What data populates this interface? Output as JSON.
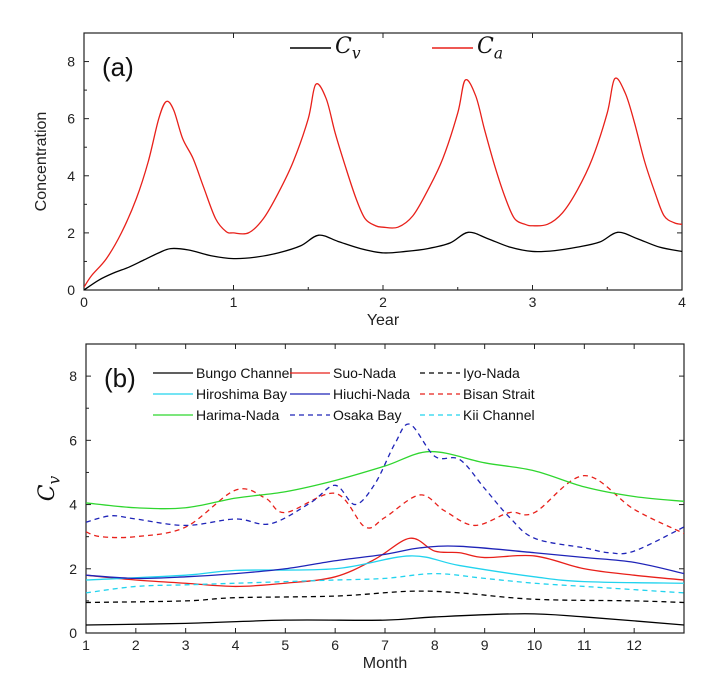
{
  "chart_data": [
    {
      "panel": "(a)",
      "type": "line",
      "xlabel": "Year",
      "ylabel": "Concentration",
      "xlim": [
        0,
        4
      ],
      "ylim": [
        0,
        9
      ],
      "xticks": [
        0,
        1,
        2,
        3,
        4
      ],
      "yticks": [
        0,
        2,
        4,
        6,
        8
      ],
      "legend_position": "top-center",
      "series": [
        {
          "name": "C",
          "name_sub": "v",
          "color": "#000000",
          "points": [
            [
              0,
              0
            ],
            [
              0.1,
              0.35
            ],
            [
              0.2,
              0.6
            ],
            [
              0.3,
              0.8
            ],
            [
              0.4,
              1.05
            ],
            [
              0.5,
              1.3
            ],
            [
              0.58,
              1.45
            ],
            [
              0.7,
              1.4
            ],
            [
              0.85,
              1.2
            ],
            [
              1.0,
              1.1
            ],
            [
              1.15,
              1.15
            ],
            [
              1.3,
              1.3
            ],
            [
              1.45,
              1.55
            ],
            [
              1.57,
              1.92
            ],
            [
              1.7,
              1.7
            ],
            [
              1.85,
              1.45
            ],
            [
              2.0,
              1.3
            ],
            [
              2.15,
              1.35
            ],
            [
              2.3,
              1.45
            ],
            [
              2.45,
              1.65
            ],
            [
              2.57,
              2.02
            ],
            [
              2.7,
              1.8
            ],
            [
              2.85,
              1.5
            ],
            [
              3.0,
              1.35
            ],
            [
              3.15,
              1.38
            ],
            [
              3.3,
              1.5
            ],
            [
              3.45,
              1.68
            ],
            [
              3.57,
              2.02
            ],
            [
              3.7,
              1.8
            ],
            [
              3.85,
              1.5
            ],
            [
              4.0,
              1.35
            ]
          ]
        },
        {
          "name": "C",
          "name_sub": "a",
          "color": "#e8201a",
          "points": [
            [
              0,
              0.1
            ],
            [
              0.05,
              0.5
            ],
            [
              0.15,
              1.1
            ],
            [
              0.25,
              2.0
            ],
            [
              0.35,
              3.2
            ],
            [
              0.43,
              4.5
            ],
            [
              0.5,
              6.0
            ],
            [
              0.55,
              6.6
            ],
            [
              0.6,
              6.3
            ],
            [
              0.66,
              5.3
            ],
            [
              0.73,
              4.6
            ],
            [
              0.8,
              3.6
            ],
            [
              0.88,
              2.5
            ],
            [
              0.95,
              2.05
            ],
            [
              1.0,
              2.0
            ],
            [
              1.1,
              2.0
            ],
            [
              1.2,
              2.5
            ],
            [
              1.3,
              3.4
            ],
            [
              1.4,
              4.5
            ],
            [
              1.5,
              6.0
            ],
            [
              1.55,
              7.2
            ],
            [
              1.62,
              6.7
            ],
            [
              1.68,
              5.5
            ],
            [
              1.75,
              4.3
            ],
            [
              1.82,
              3.2
            ],
            [
              1.88,
              2.5
            ],
            [
              1.95,
              2.25
            ],
            [
              2.0,
              2.2
            ],
            [
              2.1,
              2.2
            ],
            [
              2.2,
              2.6
            ],
            [
              2.3,
              3.5
            ],
            [
              2.4,
              4.6
            ],
            [
              2.5,
              6.2
            ],
            [
              2.55,
              7.35
            ],
            [
              2.62,
              6.8
            ],
            [
              2.68,
              5.6
            ],
            [
              2.75,
              4.3
            ],
            [
              2.82,
              3.2
            ],
            [
              2.88,
              2.5
            ],
            [
              2.95,
              2.3
            ],
            [
              3.0,
              2.25
            ],
            [
              3.1,
              2.3
            ],
            [
              3.2,
              2.7
            ],
            [
              3.3,
              3.5
            ],
            [
              3.4,
              4.6
            ],
            [
              3.5,
              6.2
            ],
            [
              3.55,
              7.4
            ],
            [
              3.62,
              6.9
            ],
            [
              3.68,
              5.9
            ],
            [
              3.75,
              4.5
            ],
            [
              3.82,
              3.4
            ],
            [
              3.88,
              2.6
            ],
            [
              3.95,
              2.35
            ],
            [
              4.0,
              2.3
            ]
          ]
        }
      ]
    },
    {
      "panel": "(b)",
      "type": "line",
      "xlabel": "Month",
      "ylabel": "C",
      "ylabel_sub": "v",
      "xlim": [
        1,
        13
      ],
      "ylim": [
        0,
        9
      ],
      "xticks": [
        1,
        2,
        3,
        4,
        5,
        6,
        7,
        8,
        9,
        10,
        11,
        12
      ],
      "yticks": [
        0,
        2,
        4,
        6,
        8
      ],
      "legend_position": "top",
      "series": [
        {
          "name": "Bungo Channel",
          "color": "#000000",
          "dash": false,
          "points": [
            [
              1,
              0.25
            ],
            [
              3,
              0.3
            ],
            [
              5,
              0.4
            ],
            [
              7,
              0.4
            ],
            [
              8,
              0.5
            ],
            [
              9.8,
              0.6
            ],
            [
              11,
              0.5
            ],
            [
              13,
              0.25
            ]
          ]
        },
        {
          "name": "Suo-Nada",
          "color": "#e8201a",
          "dash": false,
          "points": [
            [
              1,
              1.8
            ],
            [
              2,
              1.65
            ],
            [
              3,
              1.55
            ],
            [
              4,
              1.45
            ],
            [
              5,
              1.55
            ],
            [
              6,
              1.75
            ],
            [
              6.8,
              2.3
            ],
            [
              7.5,
              2.95
            ],
            [
              8,
              2.55
            ],
            [
              8.5,
              2.5
            ],
            [
              9,
              2.35
            ],
            [
              10,
              2.4
            ],
            [
              11,
              2.0
            ],
            [
              12,
              1.8
            ],
            [
              13,
              1.65
            ]
          ]
        },
        {
          "name": "Iyo-Nada",
          "color": "#000000",
          "dash": true,
          "points": [
            [
              1,
              0.95
            ],
            [
              3,
              1.0
            ],
            [
              4,
              1.1
            ],
            [
              6,
              1.15
            ],
            [
              7.5,
              1.3
            ],
            [
              8.5,
              1.25
            ],
            [
              10,
              1.05
            ],
            [
              12,
              1.0
            ],
            [
              13,
              0.95
            ]
          ]
        },
        {
          "name": "Hiroshima Bay",
          "color": "#22d3ee",
          "dash": false,
          "points": [
            [
              1,
              1.65
            ],
            [
              3,
              1.8
            ],
            [
              4,
              1.95
            ],
            [
              6,
              2.0
            ],
            [
              7.5,
              2.4
            ],
            [
              8.5,
              2.1
            ],
            [
              10,
              1.75
            ],
            [
              11,
              1.6
            ],
            [
              13,
              1.55
            ]
          ]
        },
        {
          "name": "Hiuchi-Nada",
          "color": "#1f24b8",
          "dash": false,
          "points": [
            [
              1,
              1.8
            ],
            [
              2,
              1.7
            ],
            [
              3,
              1.75
            ],
            [
              4,
              1.85
            ],
            [
              5,
              2.0
            ],
            [
              6,
              2.25
            ],
            [
              7,
              2.45
            ],
            [
              7.7,
              2.65
            ],
            [
              8.5,
              2.7
            ],
            [
              10,
              2.5
            ],
            [
              11,
              2.35
            ],
            [
              12,
              2.2
            ],
            [
              13,
              1.85
            ]
          ]
        },
        {
          "name": "Bisan Strait",
          "color": "#e8201a",
          "dash": true,
          "points": [
            [
              1,
              3.15
            ],
            [
              1.3,
              3.0
            ],
            [
              2,
              3.0
            ],
            [
              3,
              3.3
            ],
            [
              4,
              4.45
            ],
            [
              4.6,
              4.2
            ],
            [
              5,
              3.75
            ],
            [
              6,
              4.35
            ],
            [
              6.6,
              3.3
            ],
            [
              7,
              3.6
            ],
            [
              7.7,
              4.3
            ],
            [
              8.2,
              3.8
            ],
            [
              8.8,
              3.35
            ],
            [
              9.5,
              3.75
            ],
            [
              10,
              3.75
            ],
            [
              11,
              4.9
            ],
            [
              12,
              3.85
            ],
            [
              13,
              3.1
            ]
          ]
        },
        {
          "name": "Harima-Nada",
          "color": "#2fd62f",
          "dash": false,
          "points": [
            [
              1,
              4.05
            ],
            [
              2,
              3.9
            ],
            [
              3,
              3.9
            ],
            [
              4,
              4.2
            ],
            [
              5,
              4.4
            ],
            [
              6,
              4.75
            ],
            [
              7,
              5.2
            ],
            [
              7.9,
              5.65
            ],
            [
              9,
              5.3
            ],
            [
              10,
              5.05
            ],
            [
              11,
              4.55
            ],
            [
              12,
              4.25
            ],
            [
              13,
              4.1
            ]
          ]
        },
        {
          "name": "Osaka Bay",
          "color": "#1f24b8",
          "dash": true,
          "points": [
            [
              1,
              3.45
            ],
            [
              1.5,
              3.65
            ],
            [
              2,
              3.55
            ],
            [
              3,
              3.35
            ],
            [
              4,
              3.55
            ],
            [
              4.7,
              3.4
            ],
            [
              5.5,
              4.05
            ],
            [
              6,
              4.6
            ],
            [
              6.4,
              4.0
            ],
            [
              6.8,
              4.65
            ],
            [
              7.2,
              5.9
            ],
            [
              7.5,
              6.5
            ],
            [
              8,
              5.5
            ],
            [
              8.5,
              5.4
            ],
            [
              9,
              4.5
            ],
            [
              9.5,
              3.6
            ],
            [
              10,
              2.95
            ],
            [
              11,
              2.65
            ],
            [
              11.5,
              2.5
            ],
            [
              12,
              2.55
            ],
            [
              13,
              3.3
            ]
          ]
        },
        {
          "name": "Kii Channel",
          "color": "#22d3ee",
          "dash": true,
          "points": [
            [
              1,
              1.25
            ],
            [
              2,
              1.45
            ],
            [
              3,
              1.5
            ],
            [
              4,
              1.55
            ],
            [
              5,
              1.6
            ],
            [
              6,
              1.65
            ],
            [
              7,
              1.7
            ],
            [
              8,
              1.85
            ],
            [
              9,
              1.7
            ],
            [
              10,
              1.55
            ],
            [
              11,
              1.45
            ],
            [
              12,
              1.35
            ],
            [
              13,
              1.25
            ]
          ]
        }
      ]
    }
  ]
}
